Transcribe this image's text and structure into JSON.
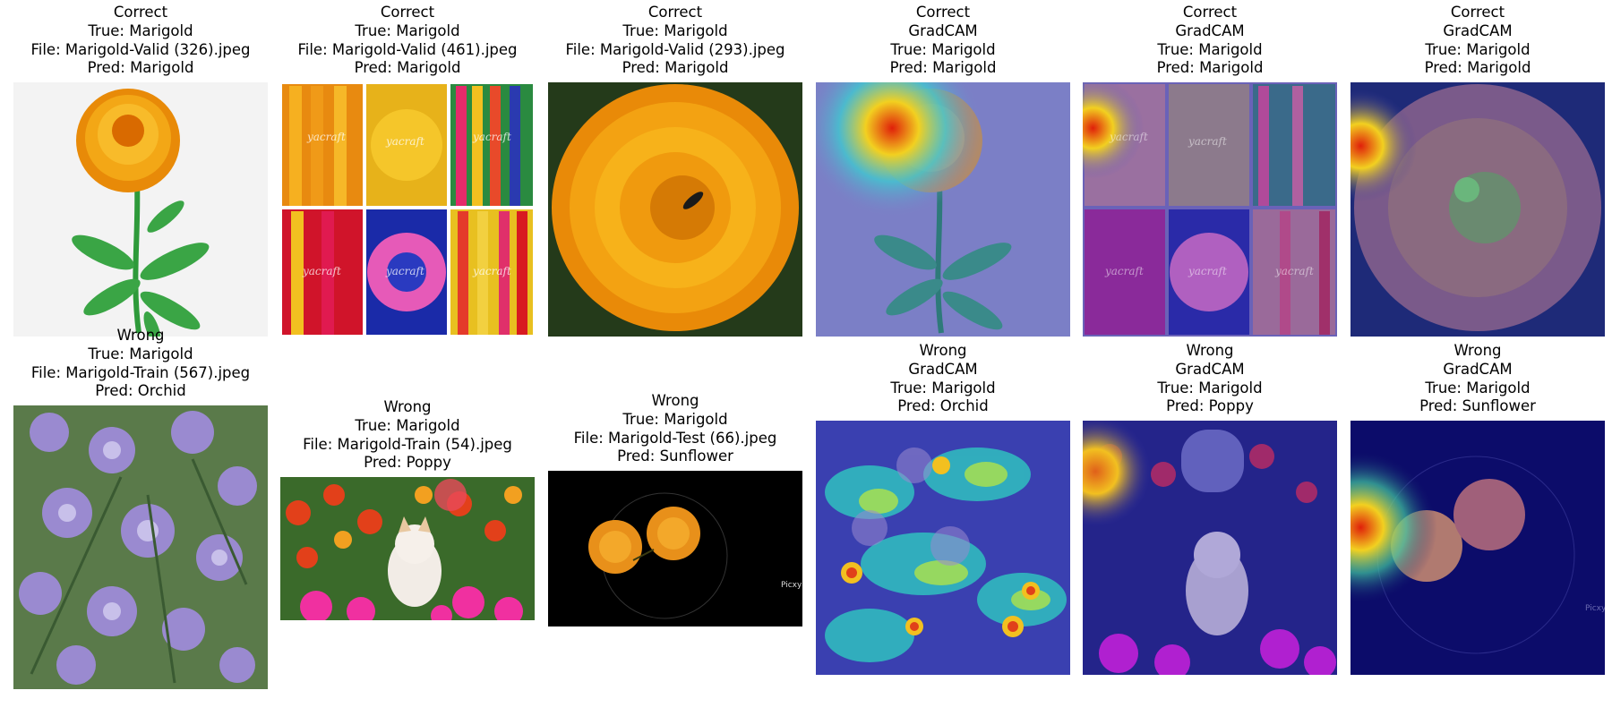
{
  "panels": [
    {
      "caption": [
        "Correct",
        "True: Marigold",
        "File: Marigold-Valid (326).jpeg",
        "Pred: Marigold"
      ]
    },
    {
      "caption": [
        "Correct",
        "True: Marigold",
        "File: Marigold-Valid (461).jpeg",
        "Pred: Marigold"
      ],
      "watermark": "yacraft"
    },
    {
      "caption": [
        "Correct",
        "True: Marigold",
        "File: Marigold-Valid (293).jpeg",
        "Pred: Marigold"
      ]
    },
    {
      "caption": [
        "Correct",
        "GradCAM",
        "True: Marigold",
        "Pred: Marigold"
      ]
    },
    {
      "caption": [
        "Correct",
        "GradCAM",
        "True: Marigold",
        "Pred: Marigold"
      ],
      "watermark": "yacraft"
    },
    {
      "caption": [
        "Correct",
        "GradCAM",
        "True: Marigold",
        "Pred: Marigold"
      ]
    },
    {
      "caption": [
        "Wrong",
        "True: Marigold",
        "File: Marigold-Train (567).jpeg",
        "Pred: Orchid"
      ]
    },
    {
      "caption": [
        "Wrong",
        "True: Marigold",
        "File: Marigold-Train (54).jpeg",
        "Pred: Poppy"
      ]
    },
    {
      "caption": [
        "Wrong",
        "True: Marigold",
        "File: Marigold-Test (66).jpeg",
        "Pred: Sunflower"
      ],
      "watermark": "Picxy"
    },
    {
      "caption": [
        "Wrong",
        "GradCAM",
        "True: Marigold",
        "Pred: Orchid"
      ]
    },
    {
      "caption": [
        "Wrong",
        "GradCAM",
        "True: Marigold",
        "Pred: Poppy"
      ]
    },
    {
      "caption": [
        "Wrong",
        "GradCAM",
        "True: Marigold",
        "Pred: Sunflower"
      ],
      "watermark": "Picxy"
    }
  ],
  "colors": {
    "marigold_orange": "#f29a12",
    "marigold_deep": "#e06a00",
    "leaf_green": "#2e9a3a",
    "rosemary_purple": "#8a7cc8",
    "gradcam_overlay": "#3f4fc0",
    "heat_red": "#e0200a",
    "heat_yellow": "#f2d020"
  }
}
